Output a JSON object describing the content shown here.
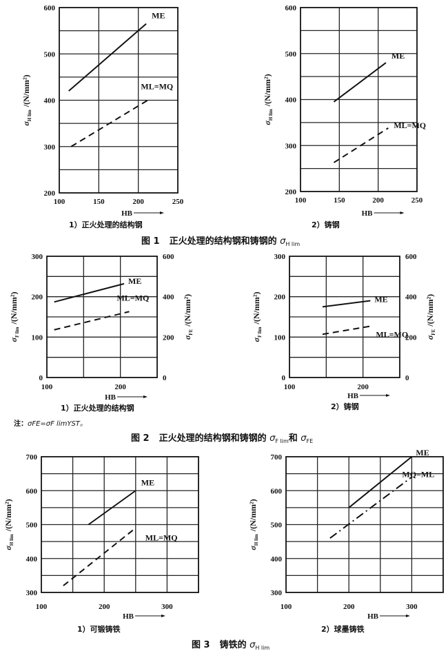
{
  "figures": [
    {
      "title_prefix": "图 1",
      "title_text": "正火处理的结构钢和铸钢的 ",
      "title_sym": "σ",
      "title_sub": "H lim",
      "title_tail": "",
      "title_sym2": "",
      "title_sub2": ""
    },
    {
      "title_prefix": "图 2",
      "title_text": "正火处理的结构钢和铸钢的 ",
      "title_sym": "σ",
      "title_sub": "F lim",
      "title_tail": "和 ",
      "title_sym2": "σ",
      "title_sub2": "FE",
      "note_prefix": "注：",
      "note_formula": "σFE=σF limYST。"
    },
    {
      "title_prefix": "图 3",
      "title_text": "铸铁的 ",
      "title_sym": "σ",
      "title_sub": "H lim",
      "title_tail": "",
      "title_sym2": "",
      "title_sub2": ""
    }
  ],
  "chart_data": [
    {
      "type": "line",
      "caption": "1）正火处理的结构钢",
      "xlabel": "HB",
      "xlim": [
        100,
        250
      ],
      "xticks": [
        100,
        150,
        200,
        250
      ],
      "ylim": [
        200,
        600
      ],
      "yticks": [
        200,
        300,
        400,
        500,
        600
      ],
      "grid": true,
      "ylabel": {
        "sym": "σ",
        "sub": "H lim",
        "unit": "/(N/mm²)"
      },
      "series": [
        {
          "name": "ME",
          "style": "solid",
          "x": [
            112,
            210
          ],
          "y": [
            420,
            565
          ]
        },
        {
          "name": "ML=MQ",
          "style": "dashed",
          "x": [
            115,
            212
          ],
          "y": [
            300,
            400
          ]
        }
      ]
    },
    {
      "type": "line",
      "caption": "2）铸钢",
      "xlabel": "HB",
      "xlim": [
        100,
        250
      ],
      "xticks": [
        100,
        150,
        200,
        250
      ],
      "ylim": [
        200,
        600
      ],
      "yticks": [
        200,
        300,
        400,
        500,
        600
      ],
      "grid": true,
      "ylabel": {
        "sym": "σ",
        "sub": "H lim",
        "unit": "/(N/mm²)"
      },
      "series": [
        {
          "name": "ME",
          "style": "solid",
          "x": [
            143,
            210
          ],
          "y": [
            395,
            480
          ]
        },
        {
          "name": "ML=MQ",
          "style": "dashed",
          "x": [
            143,
            213
          ],
          "y": [
            263,
            338
          ]
        }
      ]
    },
    {
      "type": "line",
      "caption": "1）正火处理的结构钢",
      "xlabel": "HB",
      "xlim": [
        100,
        250
      ],
      "xticks": [
        100,
        200
      ],
      "ylim": [
        0,
        300
      ],
      "yticks": [
        0,
        100,
        200,
        300
      ],
      "grid": true,
      "ylabel": {
        "sym": "σ",
        "sub": "F lim",
        "unit": "/(N/mm²)"
      },
      "y2lim": [
        0,
        600
      ],
      "y2ticks": [
        0,
        200,
        400,
        600
      ],
      "y2label": {
        "sym": "σ",
        "sub": "FE",
        "unit": "/(N/mm²)"
      },
      "series": [
        {
          "name": "ME",
          "style": "solid",
          "x": [
            110,
            205
          ],
          "y": [
            187,
            232
          ]
        },
        {
          "name": "ML=MQ",
          "style": "dashed",
          "x": [
            110,
            212
          ],
          "y": [
            118,
            163
          ]
        }
      ]
    },
    {
      "type": "line",
      "caption": "2）铸钢",
      "xlabel": "HB",
      "xlim": [
        100,
        250
      ],
      "xticks": [
        100,
        200
      ],
      "ylim": [
        0,
        300
      ],
      "yticks": [
        0,
        100,
        200,
        300
      ],
      "grid": true,
      "ylabel": {
        "sym": "σ",
        "sub": "F lim",
        "unit": "/(N/mm²)"
      },
      "y2lim": [
        0,
        600
      ],
      "y2ticks": [
        0,
        200,
        400,
        600
      ],
      "y2label": {
        "sym": "σ",
        "sub": "FE",
        "unit": "/(N/mm²)"
      },
      "series": [
        {
          "name": "ME",
          "style": "solid",
          "x": [
            145,
            210
          ],
          "y": [
            175,
            190
          ]
        },
        {
          "name": "ML=MQ",
          "style": "dashed",
          "x": [
            145,
            210
          ],
          "y": [
            107,
            127
          ]
        }
      ]
    },
    {
      "type": "line",
      "caption": "1）可锻铸铁",
      "xlabel": "HB",
      "xlim": [
        100,
        350
      ],
      "xticks": [
        100,
        200,
        300
      ],
      "ylim": [
        300,
        700
      ],
      "yticks": [
        300,
        400,
        500,
        600,
        700
      ],
      "grid": true,
      "ylabel": {
        "sym": "σ",
        "sub": "H lim",
        "unit": "/(N/mm²)"
      },
      "series": [
        {
          "name": "ME",
          "style": "solid",
          "x": [
            175,
            250
          ],
          "y": [
            500,
            600
          ]
        },
        {
          "name": "ML=MQ",
          "style": "dashed",
          "x": [
            135,
            250
          ],
          "y": [
            320,
            490
          ]
        }
      ]
    },
    {
      "type": "line",
      "caption": "2）球墨铸铁",
      "xlabel": "HB",
      "xlim": [
        100,
        350
      ],
      "xticks": [
        100,
        200,
        300
      ],
      "ylim": [
        300,
        700
      ],
      "yticks": [
        300,
        400,
        500,
        600,
        700
      ],
      "grid": true,
      "ylabel": {
        "sym": "σ",
        "sub": "H lim",
        "unit": "/(N/mm²)"
      },
      "series": [
        {
          "name": "ME",
          "style": "solid",
          "x": [
            200,
            300
          ],
          "y": [
            550,
            700
          ]
        },
        {
          "name": "MQ=ML",
          "style": "dashdot",
          "x": [
            170,
            300
          ],
          "y": [
            460,
            640
          ]
        }
      ]
    }
  ]
}
